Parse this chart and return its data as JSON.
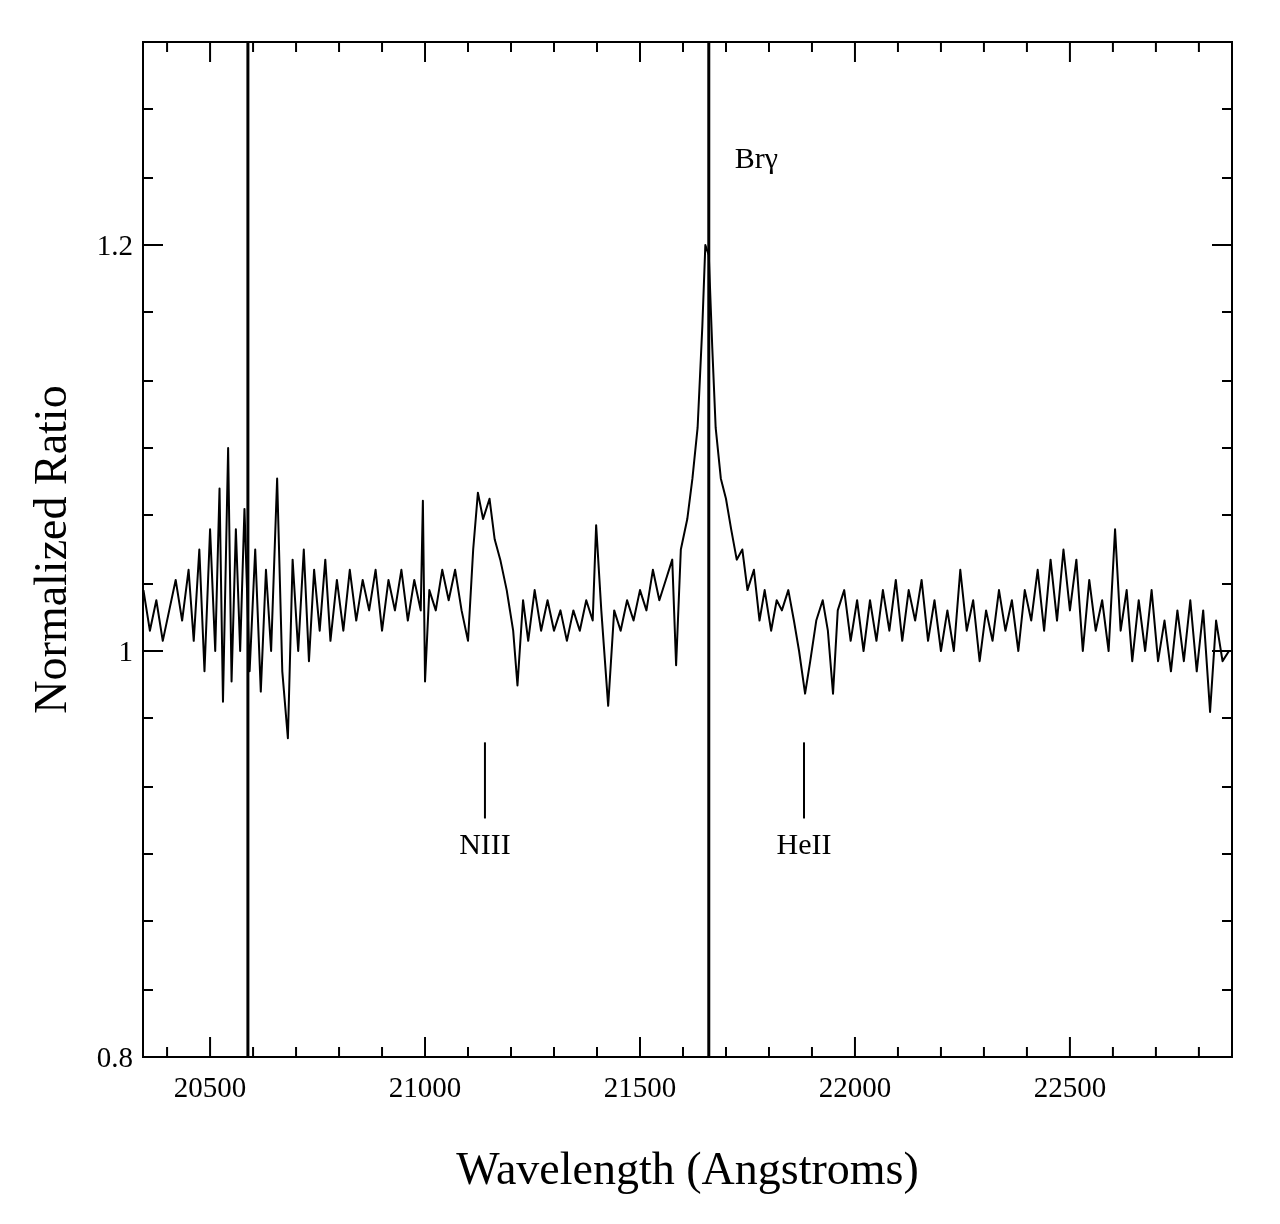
{
  "chart_data": {
    "type": "line",
    "xlabel": "Wavelength (Angstroms)",
    "ylabel": "Normalized Ratio",
    "xlim": [
      20344,
      22877
    ],
    "ylim": [
      0.8,
      1.3
    ],
    "xticks": [
      {
        "value": 20400,
        "label": null
      },
      20500,
      {
        "value": 20600,
        "label": null
      },
      {
        "value": 20700,
        "label": null
      },
      {
        "value": 20800,
        "label": null
      },
      {
        "value": 20900,
        "label": null
      },
      21000,
      {
        "value": 21100,
        "label": null
      },
      {
        "value": 21200,
        "label": null
      },
      {
        "value": 21300,
        "label": null
      },
      {
        "value": 21400,
        "label": null
      },
      21500,
      {
        "value": 21600,
        "label": null
      },
      {
        "value": 21700,
        "label": null
      },
      {
        "value": 21800,
        "label": null
      },
      {
        "value": 21900,
        "label": null
      },
      22000,
      {
        "value": 22100,
        "label": null
      },
      {
        "value": 22200,
        "label": null
      },
      {
        "value": 22300,
        "label": null
      },
      {
        "value": 22400,
        "label": null
      },
      22500,
      {
        "value": 22600,
        "label": null
      },
      {
        "value": 22700,
        "label": null
      },
      {
        "value": 22800,
        "label": null
      }
    ],
    "yticks": [
      0.8,
      {
        "value": 0.833,
        "label": null
      },
      {
        "value": 0.867,
        "label": null
      },
      {
        "value": 0.9,
        "label": null
      },
      {
        "value": 0.933,
        "label": null
      },
      {
        "value": 0.967,
        "label": null
      },
      {
        "value": 1,
        "label": "1"
      },
      {
        "value": 1.033,
        "label": null
      },
      {
        "value": 1.067,
        "label": null
      },
      {
        "value": 1.1,
        "label": null
      },
      {
        "value": 1.133,
        "label": null
      },
      {
        "value": 1.167,
        "label": null
      },
      1.2,
      {
        "value": 1.233,
        "label": null
      },
      {
        "value": 1.267,
        "label": null
      }
    ],
    "grid": false,
    "marker": "none",
    "line_style": "solid",
    "ref_lines": [
      {
        "axis": "x",
        "value": 20588,
        "color": "#000000"
      },
      {
        "axis": "x",
        "value": 21660,
        "label": "Brγ",
        "color": "#000000"
      }
    ],
    "annotations": [
      "NIII",
      "HeII"
    ],
    "series": [
      {
        "color": "#000000",
        "x": [
          20345,
          20360,
          20375,
          20390,
          20405,
          20420,
          20435,
          20450,
          20462,
          20475,
          20487,
          20500,
          20512,
          20522,
          20530,
          20542,
          20550,
          20560,
          20570,
          20580,
          20592,
          20605,
          20618,
          20630,
          20642,
          20656,
          20668,
          20681,
          20692,
          20705,
          20718,
          20730,
          20742,
          20755,
          20768,
          20780,
          20795,
          20810,
          20825,
          20840,
          20855,
          20870,
          20885,
          20900,
          20915,
          20930,
          20945,
          20960,
          20975,
          20990,
          20995,
          21000,
          21010,
          21025,
          21040,
          21055,
          21070,
          21085,
          21100,
          21112,
          21123,
          21135,
          21150,
          21162,
          21175,
          21190,
          21205,
          21215,
          21228,
          21240,
          21255,
          21270,
          21285,
          21300,
          21315,
          21330,
          21345,
          21360,
          21375,
          21390,
          21398,
          21410,
          21426,
          21440,
          21455,
          21470,
          21485,
          21500,
          21515,
          21530,
          21545,
          21560,
          21575,
          21584,
          21595,
          21610,
          21622,
          21634,
          21645,
          21652,
          21660,
          21668,
          21676,
          21688,
          21700,
          21712,
          21725,
          21738,
          21750,
          21765,
          21778,
          21790,
          21805,
          21818,
          21830,
          21845,
          21858,
          21870,
          21884,
          21896,
          21910,
          21925,
          21937,
          21949,
          21960,
          21975,
          21990,
          22005,
          22020,
          22035,
          22050,
          22065,
          22080,
          22095,
          22110,
          22125,
          22140,
          22155,
          22170,
          22185,
          22200,
          22215,
          22230,
          22245,
          22260,
          22275,
          22290,
          22305,
          22320,
          22335,
          22350,
          22365,
          22380,
          22395,
          22410,
          22425,
          22440,
          22455,
          22470,
          22485,
          22500,
          22515,
          22530,
          22545,
          22560,
          22575,
          22590,
          22605,
          22618,
          22632,
          22645,
          22660,
          22675,
          22690,
          22705,
          22720,
          22735,
          22750,
          22765,
          22780,
          22795,
          22810,
          22826,
          22840,
          22855,
          22870
        ],
        "values": [
          1.03,
          1.01,
          1.025,
          1.005,
          1.02,
          1.035,
          1.015,
          1.04,
          1.005,
          1.05,
          0.99,
          1.06,
          1.0,
          1.08,
          0.975,
          1.1,
          0.985,
          1.06,
          1.0,
          1.07,
          0.99,
          1.05,
          0.98,
          1.04,
          1.0,
          1.085,
          0.99,
          0.957,
          1.045,
          1.0,
          1.05,
          0.995,
          1.04,
          1.01,
          1.045,
          1.005,
          1.035,
          1.01,
          1.04,
          1.015,
          1.035,
          1.02,
          1.04,
          1.01,
          1.035,
          1.02,
          1.04,
          1.015,
          1.035,
          1.02,
          1.074,
          0.985,
          1.03,
          1.02,
          1.04,
          1.025,
          1.04,
          1.02,
          1.005,
          1.05,
          1.078,
          1.065,
          1.075,
          1.055,
          1.045,
          1.03,
          1.01,
          0.983,
          1.025,
          1.005,
          1.03,
          1.01,
          1.025,
          1.01,
          1.02,
          1.005,
          1.02,
          1.01,
          1.025,
          1.015,
          1.062,
          1.02,
          0.973,
          1.02,
          1.01,
          1.025,
          1.015,
          1.03,
          1.02,
          1.04,
          1.025,
          1.035,
          1.045,
          0.993,
          1.05,
          1.065,
          1.085,
          1.11,
          1.16,
          1.2,
          1.195,
          1.15,
          1.11,
          1.085,
          1.075,
          1.06,
          1.045,
          1.05,
          1.03,
          1.04,
          1.015,
          1.03,
          1.01,
          1.025,
          1.02,
          1.03,
          1.015,
          1.0,
          0.979,
          0.995,
          1.015,
          1.025,
          1.01,
          0.979,
          1.02,
          1.03,
          1.005,
          1.025,
          1.0,
          1.025,
          1.005,
          1.03,
          1.01,
          1.035,
          1.005,
          1.03,
          1.015,
          1.035,
          1.005,
          1.025,
          1.0,
          1.02,
          1.0,
          1.04,
          1.01,
          1.025,
          0.995,
          1.02,
          1.005,
          1.03,
          1.01,
          1.025,
          1.0,
          1.03,
          1.015,
          1.04,
          1.01,
          1.045,
          1.015,
          1.05,
          1.02,
          1.045,
          1.0,
          1.035,
          1.01,
          1.025,
          1.0,
          1.06,
          1.01,
          1.03,
          0.995,
          1.025,
          1.0,
          1.03,
          0.995,
          1.015,
          0.99,
          1.02,
          0.995,
          1.025,
          0.99,
          1.02,
          0.97,
          1.015,
          0.995,
          1.0
        ]
      }
    ]
  }
}
